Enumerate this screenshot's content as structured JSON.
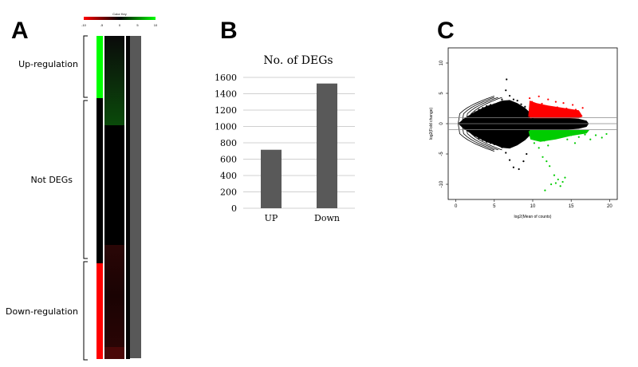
{
  "panel_labels": {
    "a": "A",
    "b": "B",
    "c": "C"
  },
  "colors": {
    "up": "#00ff00",
    "down": "#ff0000",
    "bar": "#595959",
    "ma_other": "#000000"
  },
  "chart_data": [
    {
      "panel": "A",
      "type": "heatmap",
      "color_key": {
        "title": "Color Key",
        "ticks": [
          "-10",
          "-5",
          "0",
          "5",
          "10"
        ],
        "range": [
          -10,
          10
        ],
        "colors": [
          "#ff0000",
          "#000000",
          "#00ff00"
        ]
      },
      "groups": [
        {
          "label": "Up-regulation"
        },
        {
          "label": "Not DEGs"
        },
        {
          "label": "Down-regulation"
        }
      ]
    },
    {
      "panel": "B",
      "type": "bar",
      "title": "No. of DEGs",
      "categories": [
        "UP",
        "Down"
      ],
      "values": [
        715,
        1525
      ],
      "ylim": [
        0,
        1600
      ],
      "yticks": [
        "0",
        "200",
        "400",
        "600",
        "800",
        "1000",
        "1200",
        "1400",
        "1600"
      ],
      "grid": true
    },
    {
      "panel": "C",
      "type": "scatter",
      "xlabel": "log2(Mean of counts)",
      "ylabel": "log2(Fold change)",
      "xlim": [
        -1,
        21
      ],
      "ylim": [
        -12.5,
        12.5
      ],
      "xticks": [
        "0",
        "5",
        "10",
        "15",
        "20"
      ],
      "yticks": [
        "-10",
        "-5",
        "0",
        "5",
        "10"
      ],
      "hlines": [
        -1,
        0,
        1
      ],
      "series": [
        {
          "class": "Not DEGs",
          "color": "#000000",
          "points": [
            [
              0.5,
              0.1
            ],
            [
              0.7,
              -0.2
            ],
            [
              1.0,
              0.6
            ],
            [
              1.0,
              -0.6
            ],
            [
              1.5,
              1.0
            ],
            [
              1.5,
              -1.1
            ],
            [
              2.0,
              1.5
            ],
            [
              2.0,
              -1.5
            ],
            [
              2.5,
              1.9
            ],
            [
              2.5,
              -2.0
            ],
            [
              3.0,
              2.3
            ],
            [
              3.0,
              -2.4
            ],
            [
              3.5,
              2.6
            ],
            [
              3.5,
              -2.7
            ],
            [
              4.0,
              2.9
            ],
            [
              4.0,
              -3.0
            ],
            [
              4.5,
              3.1
            ],
            [
              4.5,
              -3.2
            ],
            [
              5.0,
              3.2
            ],
            [
              5.0,
              -3.4
            ],
            [
              5.5,
              3.4
            ],
            [
              5.5,
              -3.5
            ],
            [
              6.0,
              4.0
            ],
            [
              6.0,
              -3.9
            ],
            [
              6.5,
              5.5
            ],
            [
              6.6,
              7.3
            ],
            [
              6.5,
              -4.8
            ],
            [
              7.0,
              4.6
            ],
            [
              7.0,
              -6.0
            ],
            [
              7.5,
              4.0
            ],
            [
              7.5,
              -7.2
            ],
            [
              8.0,
              3.8
            ],
            [
              8.2,
              -7.5
            ],
            [
              8.5,
              3.2
            ],
            [
              8.8,
              -6.2
            ],
            [
              9.0,
              2.8
            ],
            [
              9.2,
              -5.0
            ],
            [
              9.5,
              1.0
            ],
            [
              9.5,
              -1.1
            ],
            [
              10.0,
              0.8
            ],
            [
              10.0,
              -0.9
            ],
            [
              11.0,
              0.7
            ],
            [
              11.0,
              -0.8
            ],
            [
              12.0,
              0.6
            ],
            [
              12.0,
              -0.6
            ],
            [
              13.0,
              0.5
            ],
            [
              13.0,
              -0.6
            ],
            [
              14.0,
              0.6
            ],
            [
              14.0,
              -0.5
            ],
            [
              15.0,
              0.5
            ],
            [
              15.0,
              -0.4
            ]
          ]
        },
        {
          "class": "Up-regulation",
          "color": "#ff0000",
          "points": [
            [
              9.6,
              4.2
            ],
            [
              9.9,
              3.6
            ],
            [
              10.2,
              3.0
            ],
            [
              10.5,
              2.6
            ],
            [
              10.8,
              4.5
            ],
            [
              11.0,
              2.2
            ],
            [
              11.2,
              3.3
            ],
            [
              11.5,
              1.8
            ],
            [
              11.8,
              2.9
            ],
            [
              12.0,
              4.0
            ],
            [
              12.3,
              2.4
            ],
            [
              12.6,
              1.9
            ],
            [
              13.0,
              3.6
            ],
            [
              13.2,
              2.7
            ],
            [
              13.6,
              2.1
            ],
            [
              14.0,
              3.4
            ],
            [
              14.4,
              2.5
            ],
            [
              14.8,
              1.9
            ],
            [
              15.2,
              3.1
            ],
            [
              15.6,
              2.3
            ],
            [
              16.0,
              1.8
            ],
            [
              16.5,
              2.6
            ],
            [
              10.0,
              1.5
            ],
            [
              11.4,
              1.4
            ],
            [
              12.8,
              1.3
            ]
          ]
        },
        {
          "class": "Down-regulation",
          "color": "#00cc00",
          "points": [
            [
              9.8,
              -2.0
            ],
            [
              10.2,
              -3.2
            ],
            [
              10.5,
              -2.4
            ],
            [
              10.8,
              -4.0
            ],
            [
              11.0,
              -1.6
            ],
            [
              11.3,
              -5.5
            ],
            [
              11.5,
              -2.8
            ],
            [
              11.8,
              -6.2
            ],
            [
              12.0,
              -3.6
            ],
            [
              12.2,
              -7.0
            ],
            [
              12.5,
              -2.2
            ],
            [
              12.8,
              -8.5
            ],
            [
              13.0,
              -9.8
            ],
            [
              13.3,
              -9.2
            ],
            [
              13.6,
              -10.3
            ],
            [
              13.9,
              -9.6
            ],
            [
              12.4,
              -10.0
            ],
            [
              14.2,
              -8.9
            ],
            [
              14.5,
              -2.6
            ],
            [
              15.0,
              -1.9
            ],
            [
              15.5,
              -3.2
            ],
            [
              16.0,
              -2.2
            ],
            [
              16.8,
              -1.8
            ],
            [
              17.5,
              -2.6
            ],
            [
              18.2,
              -1.9
            ],
            [
              19.0,
              -2.3
            ],
            [
              19.6,
              -1.7
            ],
            [
              11.6,
              -11.0
            ]
          ]
        }
      ]
    }
  ]
}
